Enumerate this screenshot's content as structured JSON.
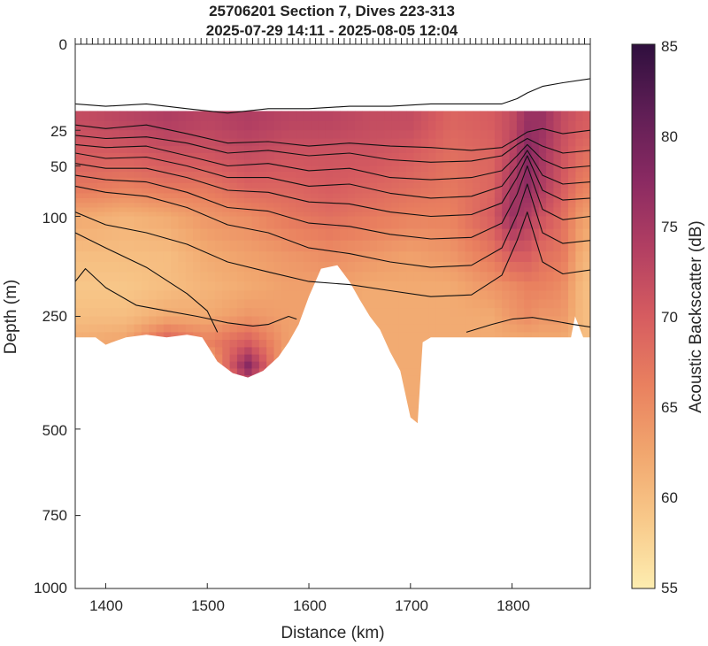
{
  "chart_data": {
    "type": "heatmap",
    "title": "25706201 Section 7, Dives 223-313",
    "subtitle": "2025-07-29 14:11 - 2025-08-05 12:04",
    "xlabel": "Distance (km)",
    "ylabel": "Depth (m)",
    "colorbar_label": "Acoustic Backscatter (dB)",
    "xlim": [
      1370,
      1877
    ],
    "ylim": [
      0,
      1000
    ],
    "y_scale": "square-root (stretched near surface)",
    "x_ticks": [
      "1400",
      "1500",
      "1600",
      "1700",
      "1800"
    ],
    "y_ticks": [
      "0",
      "25",
      "50",
      "100",
      "250",
      "500",
      "750",
      "1000"
    ],
    "y_tick_values": [
      0,
      25,
      50,
      100,
      250,
      500,
      750,
      1000
    ],
    "colorbar_ticks": [
      "55",
      "60",
      "65",
      "70",
      "75",
      "80",
      "85"
    ],
    "colorbar_range": [
      55,
      85
    ],
    "colormap": [
      "#fdedb0",
      "#f8c98a",
      "#f1a66e",
      "#e9805f",
      "#d65c60",
      "#b23f62",
      "#8a2a62",
      "#5f1e55",
      "#2f0f3e"
    ],
    "data_top_depth": 15,
    "bottom_depth_profile": {
      "distance_km": [
        1370,
        1390,
        1400,
        1410,
        1420,
        1440,
        1460,
        1480,
        1495,
        1510,
        1525,
        1540,
        1555,
        1570,
        1580,
        1590,
        1600,
        1612,
        1628,
        1640,
        1650,
        1660,
        1670,
        1680,
        1690,
        1700,
        1707,
        1712,
        1720,
        1760,
        1800,
        1840,
        1858,
        1862,
        1870,
        1877
      ],
      "depth_m": [
        290,
        290,
        305,
        297,
        290,
        285,
        290,
        285,
        290,
        340,
        365,
        375,
        360,
        330,
        300,
        265,
        215,
        170,
        165,
        190,
        220,
        250,
        275,
        320,
        360,
        470,
        485,
        300,
        290,
        290,
        290,
        290,
        290,
        250,
        290,
        290
      ]
    },
    "backscatter_columns": {
      "distance_km": [
        1380,
        1420,
        1460,
        1500,
        1540,
        1580,
        1620,
        1660,
        1700,
        1740,
        1780,
        1800,
        1815,
        1830,
        1850,
        1870
      ],
      "depths_m": [
        20,
        40,
        70,
        100,
        150,
        200,
        250,
        300,
        350,
        450
      ],
      "db": [
        [
          72,
          70,
          67,
          62,
          60,
          59,
          60,
          62,
          60,
          60
        ],
        [
          73,
          70,
          66,
          61,
          60,
          59,
          60,
          63,
          60,
          60
        ],
        [
          74,
          71,
          67,
          62,
          60,
          60,
          62,
          70,
          60,
          60
        ],
        [
          73,
          71,
          67,
          64,
          62,
          61,
          62,
          66,
          60,
          60
        ],
        [
          74,
          72,
          69,
          65,
          63,
          62,
          64,
          70,
          78,
          60
        ],
        [
          73,
          71,
          69,
          67,
          64,
          63,
          63,
          63,
          60,
          60
        ],
        [
          73,
          71,
          70,
          68,
          65,
          63,
          63,
          63,
          60,
          60
        ],
        [
          72,
          71,
          69,
          67,
          64,
          62,
          62,
          62,
          62,
          60
        ],
        [
          72,
          70,
          68,
          66,
          63,
          62,
          62,
          62,
          62,
          62
        ],
        [
          69,
          68,
          67,
          66,
          64,
          62,
          62,
          62,
          62,
          62
        ],
        [
          70,
          69,
          69,
          70,
          67,
          64,
          62,
          62,
          62,
          62
        ],
        [
          72,
          73,
          75,
          76,
          70,
          65,
          64,
          62,
          62,
          62
        ],
        [
          76,
          78,
          77,
          74,
          70,
          66,
          65,
          62,
          62,
          62
        ],
        [
          76,
          75,
          74,
          71,
          68,
          66,
          64,
          62,
          62,
          62
        ],
        [
          72,
          71,
          70,
          68,
          67,
          65,
          64,
          62,
          62,
          62
        ],
        [
          70,
          68,
          66,
          63,
          61,
          60,
          60,
          60,
          60,
          60
        ]
      ]
    },
    "contours": [
      {
        "x": [
          1370,
          1400,
          1440,
          1480,
          1520,
          1560,
          1600,
          1640,
          1680,
          1720,
          1760,
          1790,
          1805,
          1815,
          1830,
          1850,
          1877
        ],
        "y": [
          12,
          13,
          12,
          14,
          16,
          14,
          14,
          13,
          13,
          12,
          12,
          12,
          10,
          8,
          6,
          5,
          4
        ]
      },
      {
        "x": [
          1370,
          1400,
          1440,
          1480,
          1520,
          1560,
          1600,
          1640,
          1680,
          1720,
          1760,
          1790,
          1805,
          1815,
          1830,
          1850,
          1877
        ],
        "y": [
          22,
          24,
          22,
          27,
          33,
          32,
          35,
          33,
          35,
          36,
          38,
          36,
          30,
          26,
          24,
          27,
          25
        ]
      },
      {
        "x": [
          1370,
          1400,
          1440,
          1480,
          1520,
          1560,
          1600,
          1640,
          1680,
          1720,
          1760,
          1790,
          1805,
          1815,
          1830,
          1850,
          1877
        ],
        "y": [
          28,
          30,
          29,
          33,
          40,
          38,
          42,
          40,
          45,
          47,
          46,
          42,
          34,
          30,
          35,
          40,
          38
        ]
      },
      {
        "x": [
          1370,
          1400,
          1440,
          1480,
          1520,
          1560,
          1600,
          1640,
          1680,
          1720,
          1760,
          1790,
          1805,
          1815,
          1830,
          1850,
          1877
        ],
        "y": [
          34,
          36,
          35,
          42,
          50,
          48,
          54,
          52,
          60,
          62,
          60,
          54,
          42,
          34,
          45,
          52,
          50
        ]
      },
      {
        "x": [
          1370,
          1400,
          1440,
          1480,
          1520,
          1560,
          1600,
          1640,
          1680,
          1720,
          1760,
          1790,
          1805,
          1815,
          1830,
          1850,
          1877
        ],
        "y": [
          40,
          44,
          43,
          50,
          60,
          60,
          68,
          66,
          75,
          80,
          78,
          68,
          50,
          38,
          58,
          66,
          64
        ]
      },
      {
        "x": [
          1370,
          1400,
          1440,
          1480,
          1520,
          1560,
          1600,
          1640,
          1680,
          1720,
          1760,
          1790,
          1805,
          1815,
          1830,
          1850,
          1877
        ],
        "y": [
          48,
          52,
          52,
          60,
          72,
          74,
          84,
          86,
          95,
          100,
          98,
          85,
          60,
          42,
          72,
          82,
          80
        ]
      },
      {
        "x": [
          1370,
          1400,
          1440,
          1480,
          1520,
          1560,
          1600,
          1640,
          1680,
          1720,
          1760,
          1790,
          1805,
          1815,
          1830,
          1850,
          1877
        ],
        "y": [
          58,
          62,
          64,
          74,
          90,
          94,
          108,
          112,
          122,
          128,
          126,
          108,
          76,
          50,
          92,
          104,
          100
        ]
      },
      {
        "x": [
          1370,
          1400,
          1440,
          1480,
          1520,
          1560,
          1600,
          1640,
          1680,
          1720,
          1760,
          1790,
          1805,
          1815,
          1830,
          1850,
          1877
        ],
        "y": [
          68,
          74,
          78,
          90,
          110,
          120,
          140,
          148,
          160,
          168,
          165,
          140,
          98,
          66,
          120,
          134,
          130
        ]
      },
      {
        "x": [
          1370,
          1400,
          1440,
          1480,
          1520,
          1560,
          1600,
          1640,
          1680,
          1720,
          1760,
          1790,
          1805,
          1815,
          1830,
          1850,
          1877
        ],
        "y": [
          95,
          110,
          120,
          135,
          160,
          175,
          190,
          195,
          205,
          215,
          212,
          180,
          130,
          95,
          160,
          178,
          172
        ]
      },
      {
        "x": [
          1370,
          1380,
          1400,
          1430,
          1460,
          1490,
          1520,
          1545,
          1560,
          1580,
          1588
        ],
        "y": [
          190,
          170,
          200,
          230,
          240,
          250,
          262,
          268,
          265,
          250,
          255
        ]
      },
      {
        "x": [
          1370,
          1400,
          1440,
          1480,
          1500,
          1510
        ],
        "y": [
          120,
          140,
          168,
          210,
          240,
          280
        ]
      },
      {
        "x": [
          1755,
          1780,
          1800,
          1820,
          1840,
          1860,
          1877
        ],
        "y": [
          280,
          265,
          255,
          252,
          258,
          265,
          270
        ]
      }
    ]
  }
}
